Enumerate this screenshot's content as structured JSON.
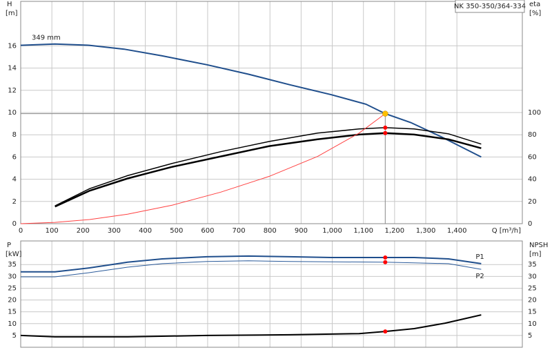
{
  "chart_data": [
    {
      "type": "line",
      "title": "NK 350-350/364-334",
      "ylabel": [
        "H",
        "[m]"
      ],
      "y2label": [
        "eta",
        "[%]"
      ],
      "xlabel": "Q [m³/h]",
      "xlim": [
        0,
        1610
      ],
      "xticks": [
        0,
        100,
        200,
        300,
        400,
        500,
        600,
        700,
        800,
        900,
        {
          "value": 1000,
          "label": "1,000"
        },
        {
          "value": 1100,
          "label": "1,100"
        },
        {
          "value": 1200,
          "label": "1,200"
        },
        {
          "value": 1300,
          "label": "1,300"
        },
        {
          "value": 1400,
          "label": "1,400"
        }
      ],
      "ylim": [
        0,
        20
      ],
      "yticks": [
        0,
        2,
        4,
        6,
        8,
        10,
        12,
        14,
        16
      ],
      "y2lim": [
        0,
        200
      ],
      "y2ticks": [
        0,
        20,
        40,
        60,
        80,
        100
      ],
      "grid": true,
      "series": [
        {
          "name": "349 mm",
          "color": "#1f4e8c",
          "width": 2,
          "x": [
            0,
            110,
            220,
            332,
            454,
            598,
            731,
            864,
            997,
            1108,
            1170,
            1252,
            1351,
            1478
          ],
          "values": [
            16.05,
            16.17,
            16.05,
            15.7,
            15.1,
            14.3,
            13.45,
            12.5,
            11.6,
            10.75,
            9.9,
            9.1,
            7.8,
            6.0
          ]
        },
        {
          "color": "#000000",
          "width": 1.5,
          "axis": "y2",
          "x": [
            110,
            221,
            343,
            487,
            642,
            798,
            953,
            1086,
            1170,
            1263,
            1373,
            1478
          ],
          "values": [
            16,
            31.5,
            43.2,
            54.3,
            64.8,
            74,
            81.5,
            85.2,
            86.4,
            85.2,
            80.9,
            71.6
          ]
        },
        {
          "color": "#000000",
          "width": 2.5,
          "axis": "y2",
          "x": [
            110,
            221,
            343,
            487,
            642,
            798,
            953,
            1086,
            1170,
            1263,
            1373,
            1478
          ],
          "values": [
            15.4,
            29.6,
            40.7,
            51.2,
            60.5,
            69.8,
            75.9,
            80.2,
            81.5,
            80.2,
            75.9,
            67.9
          ]
        },
        {
          "color": "#ff4040",
          "width": 1,
          "x": [
            0,
            110,
            221,
            343,
            487,
            642,
            798,
            953,
            1086,
            1170
          ],
          "values": [
            0,
            0.12,
            0.37,
            0.86,
            1.67,
            2.84,
            4.26,
            6.05,
            8.15,
            9.9
          ]
        }
      ],
      "operating_point": {
        "x": 1170,
        "y": 9.9,
        "color": "#ffc000"
      },
      "markers": [
        {
          "x": 1170,
          "y": 86.4,
          "axis": "y2",
          "color": "#ff0000"
        },
        {
          "x": 1170,
          "y": 81.5,
          "axis": "y2",
          "color": "#ff0000"
        }
      ]
    },
    {
      "type": "line",
      "ylabel": [
        "P",
        "[kW]"
      ],
      "y2label": [
        "NPSH",
        "[m]"
      ],
      "xlim": [
        0,
        1610
      ],
      "ylim": [
        0,
        45
      ],
      "yticks": [
        5,
        10,
        15,
        20,
        25,
        30,
        35
      ],
      "y2lim": [
        0,
        45
      ],
      "y2ticks": [
        5,
        10,
        15,
        20,
        25,
        30,
        35
      ],
      "grid": true,
      "series": [
        {
          "name": "P1",
          "color": "#1f4e8c",
          "width": 2,
          "x": [
            0,
            110,
            221,
            343,
            454,
            598,
            731,
            864,
            997,
            1170,
            1263,
            1373,
            1478
          ],
          "values": [
            31.9,
            31.9,
            33.6,
            36,
            37.4,
            38.3,
            38.6,
            38.3,
            38,
            38,
            38,
            37.4,
            35.4
          ]
        },
        {
          "name": "P2",
          "color": "#2a5a9a",
          "width": 1,
          "x": [
            0,
            110,
            221,
            343,
            454,
            598,
            731,
            864,
            1170,
            1373,
            1478
          ],
          "values": [
            29.8,
            29.8,
            31.6,
            33.9,
            35.4,
            36.3,
            36.6,
            36.3,
            36,
            35.4,
            33
          ]
        },
        {
          "color": "#000000",
          "width": 2,
          "axis": "y2",
          "x": [
            0,
            110,
            343,
            598,
            864,
            1086,
            1170,
            1263,
            1362,
            1478
          ],
          "values": [
            5,
            4.4,
            4.4,
            5,
            5.3,
            5.8,
            6.7,
            7.9,
            10.2,
            13.7
          ]
        }
      ],
      "markers": [
        {
          "x": 1170,
          "y": 38,
          "color": "#ff0000"
        },
        {
          "x": 1170,
          "y": 36,
          "color": "#ff0000"
        },
        {
          "x": 1170,
          "y": 6.7,
          "axis": "y2",
          "color": "#ff0000"
        }
      ]
    }
  ]
}
